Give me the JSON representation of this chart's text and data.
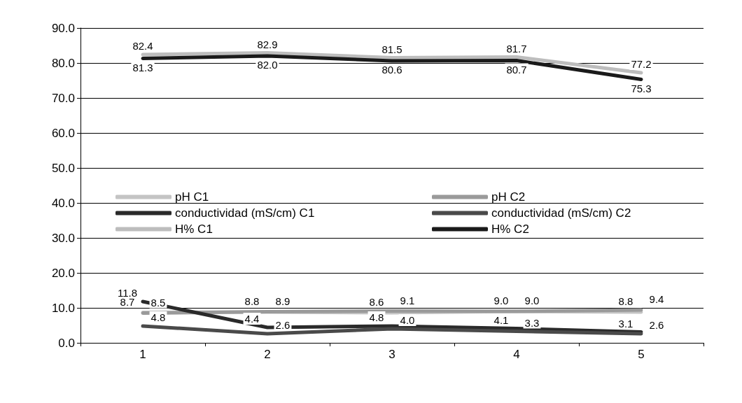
{
  "chart_data": {
    "type": "line",
    "categories": [
      "1",
      "2",
      "3",
      "4",
      "5"
    ],
    "series": [
      {
        "name": "pH C1",
        "color": "#c4c4c4",
        "values": [
          8.7,
          8.8,
          8.6,
          9.0,
          8.8
        ],
        "value_labels": [
          "8.7",
          "8.8",
          "8.6",
          "9.0",
          "8.8"
        ]
      },
      {
        "name": "pH C2",
        "color": "#9a9a9a",
        "values": [
          8.5,
          8.9,
          9.1,
          9.0,
          9.4
        ],
        "value_labels": [
          "8.5",
          "8.9",
          "9.1",
          "9.0",
          "9.4"
        ]
      },
      {
        "name": "conductividad (mS/cm) C1",
        "color": "#2a2a2a",
        "values": [
          11.8,
          4.4,
          4.8,
          4.1,
          3.1
        ],
        "value_labels": [
          "11.8",
          "4.4",
          "4.8",
          "4.1",
          "3.1"
        ]
      },
      {
        "name": "conductividad (mS/cm) C2",
        "color": "#4a4a4a",
        "values": [
          4.8,
          2.6,
          4.0,
          3.3,
          2.6
        ],
        "value_labels": [
          "4.8",
          "2.6",
          "4.0",
          "3.3",
          "2.6"
        ]
      },
      {
        "name": "H% C1",
        "color": "#bdbdbd",
        "values": [
          82.4,
          82.9,
          81.5,
          81.7,
          77.2
        ],
        "value_labels": [
          "82.4",
          "82.9",
          "81.5",
          "81.7",
          "77.2"
        ]
      },
      {
        "name": "H% C2",
        "color": "#1a1a1a",
        "values": [
          81.3,
          82.0,
          80.6,
          80.7,
          75.3
        ],
        "value_labels": [
          "81.3",
          "82.0",
          "80.6",
          "80.7",
          "75.3"
        ]
      }
    ],
    "ylim": [
      0,
      90
    ],
    "yticks": [
      {
        "value": 0,
        "label": "0.0"
      },
      {
        "value": 10,
        "label": "10.0"
      },
      {
        "value": 20,
        "label": "20.0"
      },
      {
        "value": 30,
        "label": "30.0"
      },
      {
        "value": 40,
        "label": "40.0"
      },
      {
        "value": 50,
        "label": "50.0"
      },
      {
        "value": 60,
        "label": "60.0"
      },
      {
        "value": 70,
        "label": "70.0"
      },
      {
        "value": 80,
        "label": "80.0"
      },
      {
        "value": 90,
        "label": "90.0"
      }
    ],
    "grid": "y",
    "legend": "left",
    "marker": "none",
    "line_style": "solid"
  }
}
